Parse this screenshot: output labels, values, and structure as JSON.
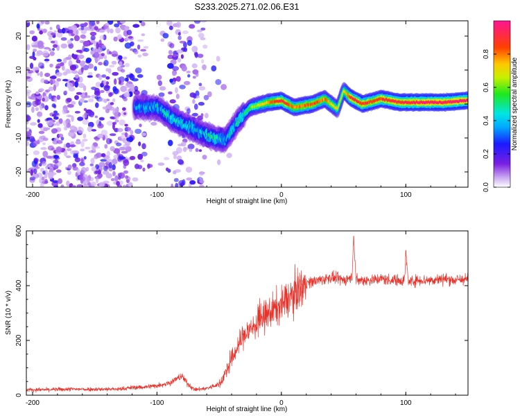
{
  "title": "S233.2025.271.02.06.E31",
  "colors": {
    "spectrum_background": "#ffffff",
    "noise": "#8a2be2",
    "snr_line": "#e8322a"
  },
  "chart_data": [
    {
      "type": "heatmap",
      "title": "S233.2025.271.02.06.E31",
      "xlabel": "Height of straight line (km)",
      "ylabel": "Frequency (Hz)",
      "xlim": [
        -205,
        150
      ],
      "ylim": [
        -24.5,
        24.5
      ],
      "x_ticks": [
        -200,
        -100,
        0,
        100
      ],
      "y_ticks": [
        -20,
        -10,
        0,
        10,
        20
      ],
      "colorbar": {
        "label": "Normalized spectral amplitude",
        "range": [
          0,
          1
        ],
        "ticks": [
          "0.0",
          "0.2",
          "0.4",
          "0.6",
          "0.8"
        ],
        "tick_values": [
          0.0,
          0.2,
          0.4,
          0.6,
          0.8
        ]
      },
      "ridge": {
        "description_points": [
          {
            "x": -115,
            "y": -1.0,
            "amp": 0.35
          },
          {
            "x": -100,
            "y": -1.0,
            "amp": 0.4
          },
          {
            "x": -85,
            "y": -5.0,
            "amp": 0.45
          },
          {
            "x": -70,
            "y": -7.5,
            "amp": 0.4
          },
          {
            "x": -55,
            "y": -10.0,
            "amp": 0.45
          },
          {
            "x": -45,
            "y": -10.5,
            "amp": 0.4
          },
          {
            "x": -35,
            "y": -5.0,
            "amp": 0.45
          },
          {
            "x": -25,
            "y": -1.0,
            "amp": 0.6
          },
          {
            "x": -10,
            "y": 0.5,
            "amp": 0.8
          },
          {
            "x": 0,
            "y": 1.0,
            "amp": 0.95
          },
          {
            "x": 10,
            "y": -1.0,
            "amp": 0.8
          },
          {
            "x": 25,
            "y": 0.0,
            "amp": 0.85
          },
          {
            "x": 35,
            "y": 1.5,
            "amp": 0.8
          },
          {
            "x": 45,
            "y": -1.5,
            "amp": 0.7
          },
          {
            "x": 50,
            "y": 4.0,
            "amp": 0.7
          },
          {
            "x": 55,
            "y": 2.0,
            "amp": 0.9
          },
          {
            "x": 65,
            "y": 0.0,
            "amp": 0.9
          },
          {
            "x": 80,
            "y": 1.5,
            "amp": 0.9
          },
          {
            "x": 95,
            "y": 0.5,
            "amp": 0.95
          },
          {
            "x": 110,
            "y": 0.5,
            "amp": 0.98
          },
          {
            "x": 130,
            "y": 0.5,
            "amp": 0.98
          },
          {
            "x": 148,
            "y": 1.0,
            "amp": 0.98
          }
        ]
      }
    },
    {
      "type": "line",
      "xlabel": "Height of straight line (km)",
      "ylabel": "SNR (10 * v/v)",
      "xlim": [
        -205,
        150
      ],
      "ylim": [
        0,
        600
      ],
      "x_ticks": [
        -200,
        -100,
        0,
        100
      ],
      "y_ticks": [
        0,
        200,
        400,
        600
      ],
      "series": [
        {
          "name": "SNR",
          "x": [
            -205,
            -190,
            -170,
            -150,
            -130,
            -120,
            -110,
            -100,
            -90,
            -80,
            -75,
            -70,
            -60,
            -50,
            -45,
            -40,
            -35,
            -30,
            -20,
            -10,
            0,
            10,
            20,
            30,
            40,
            50,
            57,
            58,
            60,
            70,
            80,
            90,
            99,
            100,
            102,
            110,
            120,
            130,
            140,
            150
          ],
          "y": [
            20,
            20,
            22,
            22,
            22,
            28,
            30,
            35,
            45,
            70,
            40,
            20,
            25,
            40,
            80,
            130,
            180,
            220,
            260,
            300,
            330,
            370,
            410,
            420,
            430,
            420,
            430,
            600,
            420,
            420,
            425,
            420,
            420,
            520,
            415,
            420,
            420,
            425,
            420,
            425
          ]
        }
      ]
    }
  ]
}
